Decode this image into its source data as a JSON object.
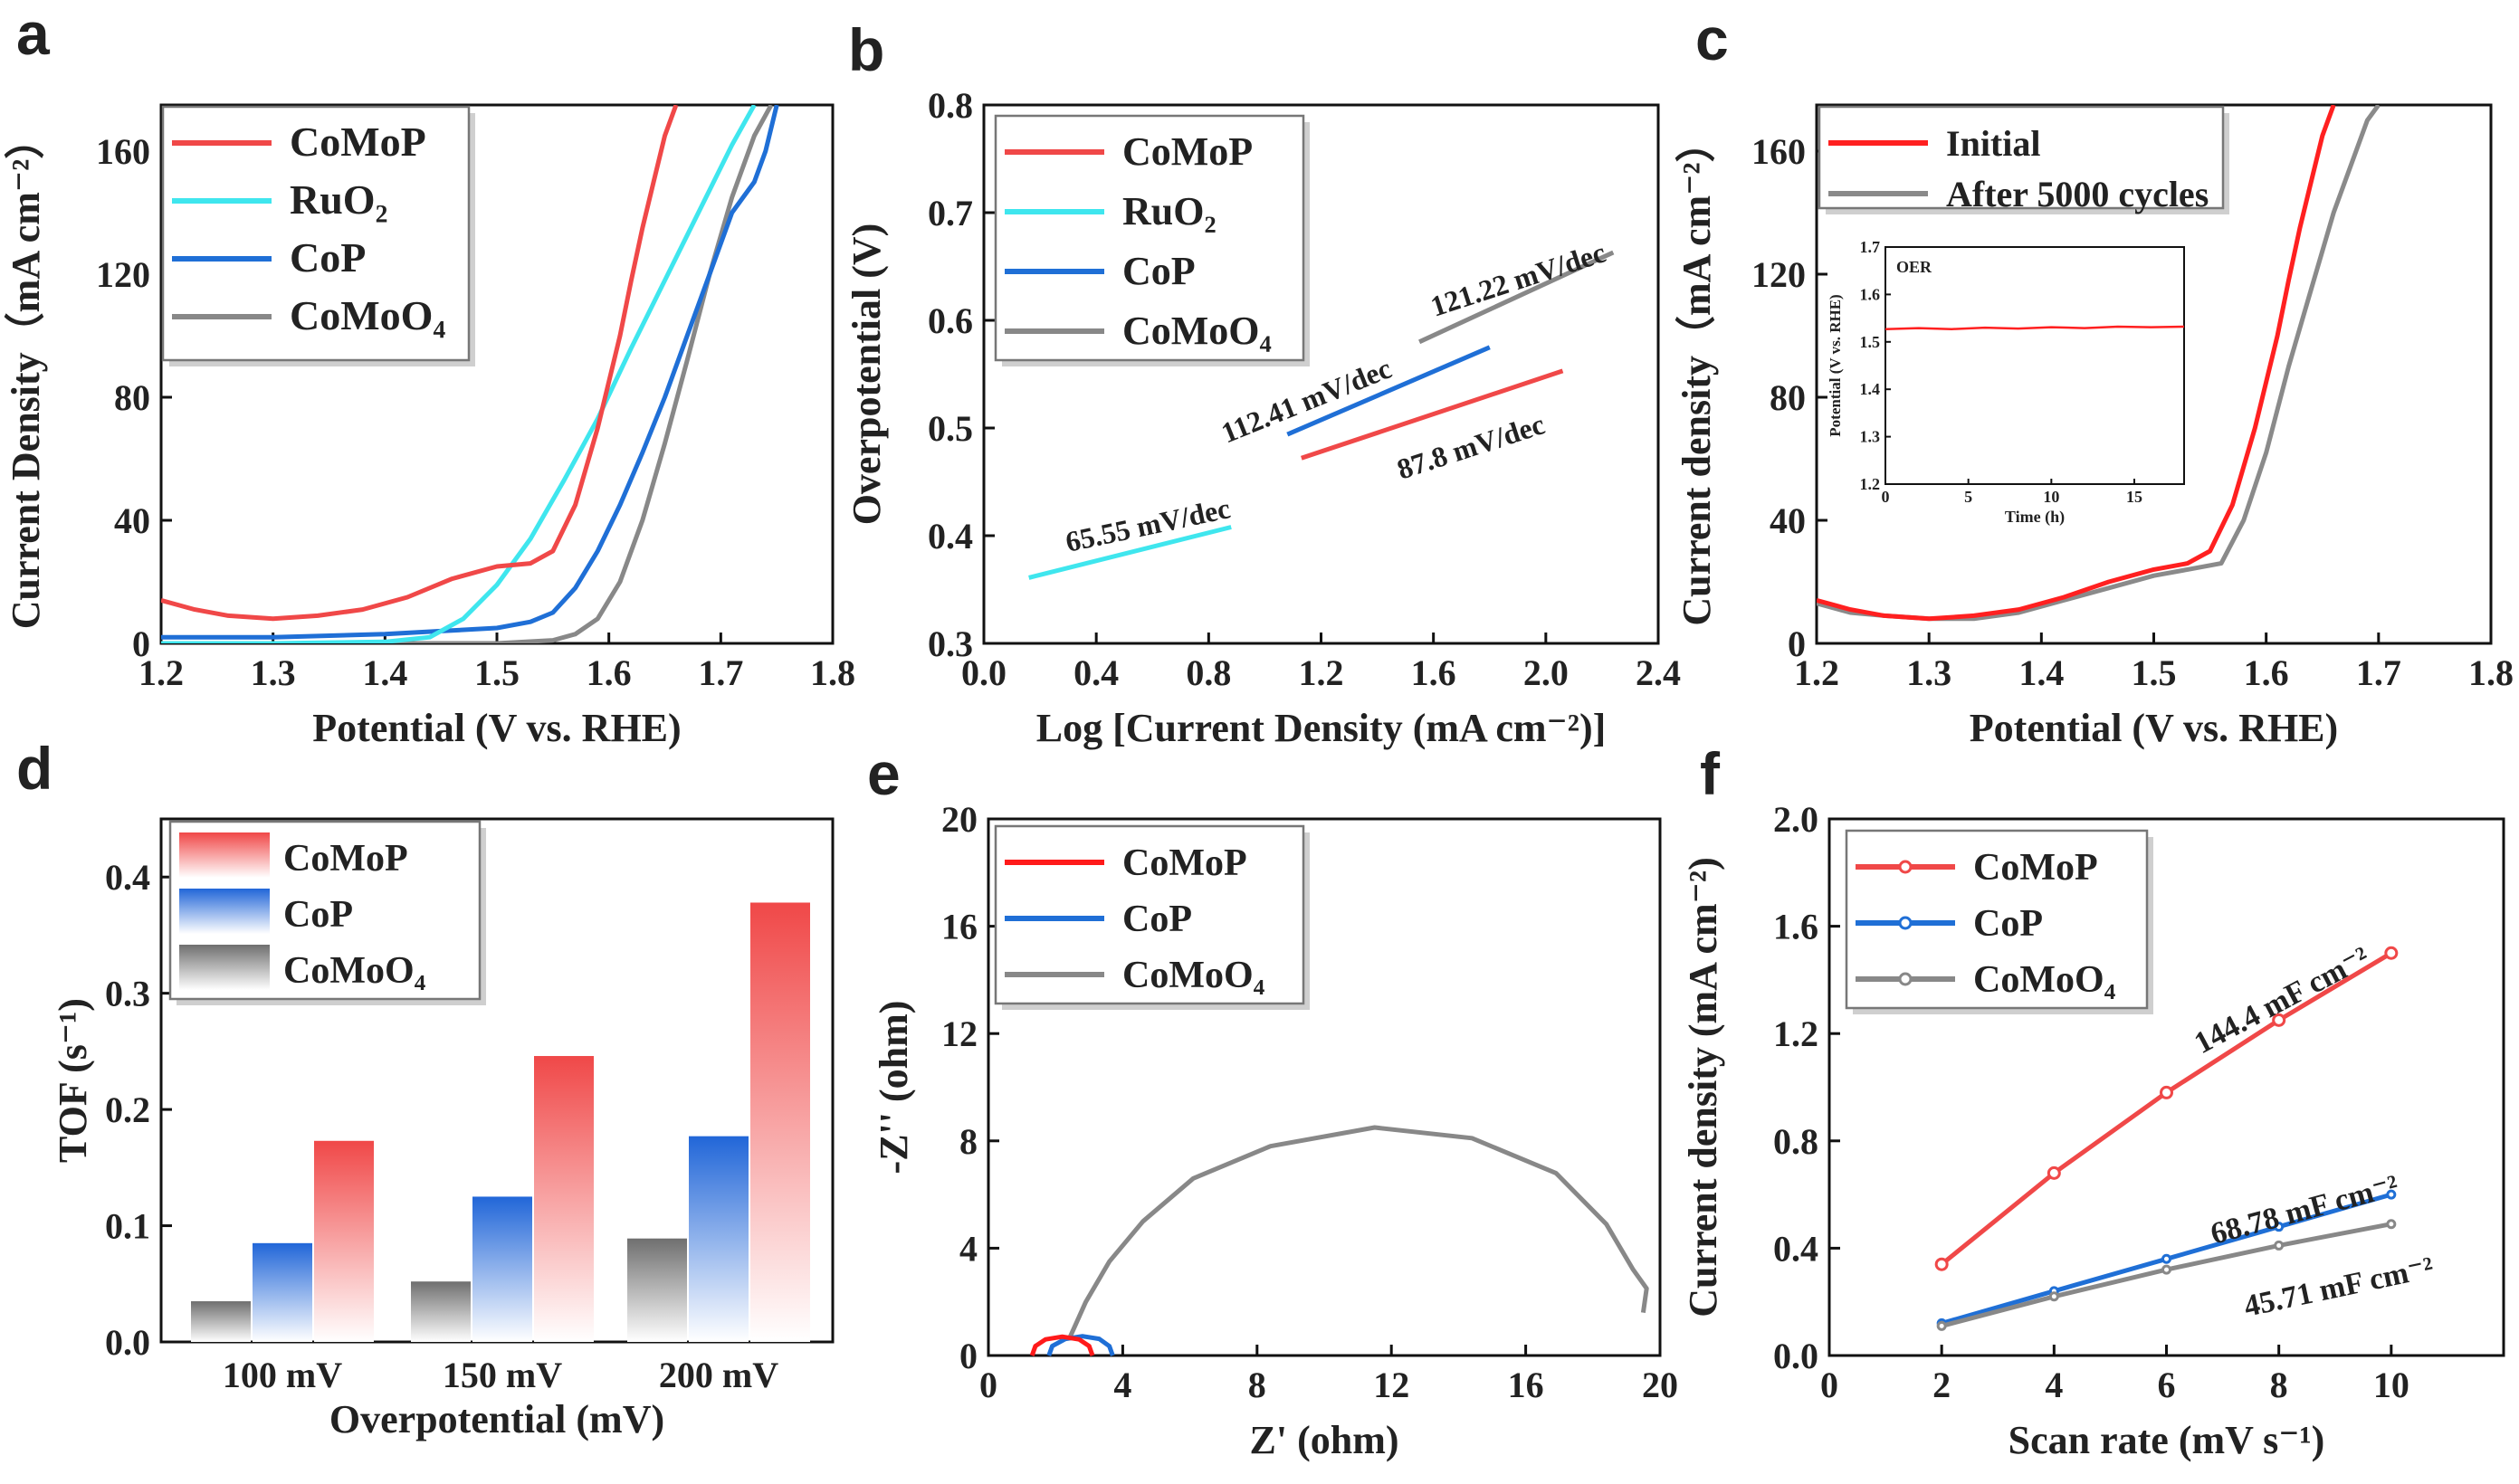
{
  "panels": {
    "a": {
      "letter": "a"
    },
    "b": {
      "letter": "b"
    },
    "c": {
      "letter": "c"
    },
    "d": {
      "letter": "d"
    },
    "e": {
      "letter": "e"
    },
    "f": {
      "letter": "f"
    }
  },
  "colors": {
    "CoMoP": "#f04848",
    "RuO2": "#3fe6ee",
    "CoP": "#1f6fd6",
    "CoMoO4": "#888888",
    "Initial": "#ff2020",
    "After": "#8a8a8a"
  },
  "chart_data": [
    {
      "id": "a",
      "type": "line",
      "title": "",
      "xlabel": "Potential (V vs. RHE)",
      "ylabel": "Current Density（mA cm⁻²）",
      "xlim": [
        1.2,
        1.8
      ],
      "ylim": [
        0,
        175
      ],
      "xticks": [
        "1.2",
        "1.3",
        "1.4",
        "1.5",
        "1.6",
        "1.7",
        "1.8"
      ],
      "yticks": [
        "0",
        "40",
        "80",
        "120",
        "160"
      ],
      "legend": [
        "CoMoP",
        "RuO₂",
        "CoP",
        "CoMoO₄"
      ],
      "series": [
        {
          "name": "CoMoP",
          "x": [
            1.2,
            1.23,
            1.26,
            1.3,
            1.34,
            1.38,
            1.42,
            1.46,
            1.5,
            1.53,
            1.55,
            1.57,
            1.59,
            1.61,
            1.62,
            1.63,
            1.64,
            1.65,
            1.66
          ],
          "y": [
            14,
            11,
            9,
            8,
            9,
            11,
            15,
            21,
            25,
            26,
            30,
            45,
            70,
            100,
            118,
            135,
            150,
            165,
            175
          ]
        },
        {
          "name": "RuO₂",
          "x": [
            1.2,
            1.3,
            1.4,
            1.44,
            1.47,
            1.5,
            1.53,
            1.56,
            1.59,
            1.62,
            1.65,
            1.68,
            1.71,
            1.73
          ],
          "y": [
            0,
            0,
            0.5,
            2,
            8,
            19,
            34,
            53,
            73,
            96,
            118,
            140,
            162,
            175
          ]
        },
        {
          "name": "CoP",
          "x": [
            1.2,
            1.3,
            1.4,
            1.45,
            1.5,
            1.53,
            1.55,
            1.57,
            1.59,
            1.61,
            1.63,
            1.65,
            1.67,
            1.69,
            1.71,
            1.73,
            1.74,
            1.75
          ],
          "y": [
            2,
            2,
            3,
            4,
            5,
            7,
            10,
            18,
            30,
            45,
            62,
            80,
            100,
            120,
            140,
            150,
            160,
            175
          ]
        },
        {
          "name": "CoMoO₄",
          "x": [
            1.2,
            1.4,
            1.5,
            1.55,
            1.57,
            1.59,
            1.61,
            1.63,
            1.65,
            1.67,
            1.69,
            1.71,
            1.73,
            1.745
          ],
          "y": [
            0,
            0,
            0,
            1,
            3,
            8,
            20,
            40,
            65,
            92,
            120,
            145,
            165,
            175
          ]
        }
      ]
    },
    {
      "id": "b",
      "type": "line",
      "xlabel": "Log [Current Density (mA cm⁻²)]",
      "ylabel": "Overpotential (V)",
      "xlim": [
        0.0,
        2.4
      ],
      "ylim": [
        0.3,
        0.8
      ],
      "xticks": [
        "0.0",
        "0.4",
        "0.8",
        "1.2",
        "1.6",
        "2.0",
        "2.4"
      ],
      "yticks": [
        "0.3",
        "0.4",
        "0.5",
        "0.6",
        "0.7",
        "0.8"
      ],
      "legend": [
        "CoMoP",
        "RuO₂",
        "CoP",
        "CoMoO₄"
      ],
      "series": [
        {
          "name": "CoMoP",
          "x": [
            1.13,
            2.06
          ],
          "y": [
            0.472,
            0.553
          ],
          "slope_label": "87.8 mV/dec"
        },
        {
          "name": "RuO₂",
          "x": [
            0.16,
            0.88
          ],
          "y": [
            0.361,
            0.408
          ],
          "slope_label": "65.55 mV/dec"
        },
        {
          "name": "CoP",
          "x": [
            1.08,
            1.8
          ],
          "y": [
            0.494,
            0.575
          ],
          "slope_label": "112.41 mV/dec"
        },
        {
          "name": "CoMoO₄",
          "x": [
            1.55,
            2.24
          ],
          "y": [
            0.58,
            0.663
          ],
          "slope_label": "121.22 mV/dec"
        }
      ]
    },
    {
      "id": "c",
      "type": "line",
      "xlabel": "Potential (V vs. RHE)",
      "ylabel": "Current density（mA cm⁻²）",
      "xlim": [
        1.2,
        1.8
      ],
      "ylim": [
        0,
        175
      ],
      "xticks": [
        "1.2",
        "1.3",
        "1.4",
        "1.5",
        "1.6",
        "1.7",
        "1.8"
      ],
      "yticks": [
        "0",
        "40",
        "80",
        "120",
        "160"
      ],
      "legend": [
        "Initial",
        "After 5000 cycles"
      ],
      "series": [
        {
          "name": "Initial",
          "x": [
            1.2,
            1.23,
            1.26,
            1.3,
            1.34,
            1.38,
            1.42,
            1.46,
            1.5,
            1.53,
            1.55,
            1.57,
            1.59,
            1.61,
            1.62,
            1.63,
            1.64,
            1.65,
            1.66
          ],
          "y": [
            14,
            11,
            9,
            8,
            9,
            11,
            15,
            20,
            24,
            26,
            30,
            45,
            70,
            100,
            118,
            135,
            150,
            165,
            175
          ]
        },
        {
          "name": "After 5000 cycles",
          "x": [
            1.2,
            1.23,
            1.26,
            1.3,
            1.34,
            1.38,
            1.42,
            1.46,
            1.5,
            1.53,
            1.56,
            1.58,
            1.6,
            1.62,
            1.64,
            1.66,
            1.68,
            1.69,
            1.7
          ],
          "y": [
            13,
            10,
            9,
            8,
            8,
            10,
            14,
            18,
            22,
            24,
            26,
            40,
            62,
            90,
            115,
            140,
            160,
            170,
            175
          ]
        }
      ],
      "inset": {
        "label": "OER",
        "xlabel": "Time (h)",
        "ylabel": "Potential (V vs. RHE)",
        "xlim": [
          0,
          18
        ],
        "ylim": [
          1.2,
          1.7
        ],
        "xticks": [
          "0",
          "5",
          "10",
          "15"
        ],
        "yticks": [
          "1.2",
          "1.3",
          "1.4",
          "1.5",
          "1.6",
          "1.7"
        ],
        "series": [
          {
            "name": "Potential",
            "x": [
              0,
              2,
              4,
              6,
              8,
              10,
              12,
              14,
              16,
              18
            ],
            "y": [
              1.527,
              1.529,
              1.527,
              1.53,
              1.528,
              1.531,
              1.529,
              1.532,
              1.531,
              1.532
            ]
          }
        ]
      }
    },
    {
      "id": "d",
      "type": "bar",
      "xlabel": "Overpotential (mV)",
      "ylabel": "TOF (s⁻¹)",
      "ylim": [
        0,
        0.45
      ],
      "categories": [
        "100 mV",
        "150 mV",
        "200 mV"
      ],
      "yticks": [
        "0.0",
        "0.1",
        "0.2",
        "0.3",
        "0.4"
      ],
      "legend": [
        "CoMoP",
        "CoP",
        "CoMoO₄"
      ],
      "series": [
        {
          "name": "CoMoO₄",
          "values": [
            0.035,
            0.052,
            0.089
          ]
        },
        {
          "name": "CoP",
          "values": [
            0.085,
            0.125,
            0.177
          ]
        },
        {
          "name": "CoMoP",
          "values": [
            0.173,
            0.246,
            0.378
          ]
        }
      ]
    },
    {
      "id": "e",
      "type": "line",
      "xlabel": "Z' (ohm)",
      "ylabel": "-Z'' (ohm)",
      "xlim": [
        0,
        20
      ],
      "ylim": [
        0,
        20
      ],
      "xticks": [
        "0",
        "4",
        "8",
        "12",
        "16",
        "20"
      ],
      "yticks": [
        "0",
        "4",
        "8",
        "12",
        "16",
        "20"
      ],
      "legend": [
        "CoMoP",
        "CoP",
        "CoMoO₄"
      ],
      "series": [
        {
          "name": "CoMoP",
          "x": [
            1.3,
            1.4,
            1.7,
            2.2,
            2.7,
            3.0,
            3.1
          ],
          "y": [
            0,
            0.35,
            0.6,
            0.7,
            0.6,
            0.35,
            0
          ]
        },
        {
          "name": "CoP",
          "x": [
            1.8,
            1.9,
            2.3,
            2.8,
            3.3,
            3.6,
            3.7
          ],
          "y": [
            0,
            0.35,
            0.62,
            0.72,
            0.62,
            0.35,
            0
          ]
        },
        {
          "name": "CoMoO₄",
          "x": [
            2.4,
            2.9,
            3.6,
            4.6,
            6.1,
            8.4,
            11.5,
            14.4,
            16.9,
            18.4,
            19.2,
            19.6,
            19.5
          ],
          "y": [
            0.6,
            2.0,
            3.5,
            5.0,
            6.6,
            7.8,
            8.5,
            8.1,
            6.8,
            4.9,
            3.2,
            2.5,
            1.6
          ]
        }
      ]
    },
    {
      "id": "f",
      "type": "line",
      "xlabel": "Scan rate (mV s⁻¹)",
      "ylabel": "Current density (mA cm⁻²)",
      "xlim": [
        0,
        12
      ],
      "ylim": [
        0,
        2.0
      ],
      "xticks": [
        "0",
        "2",
        "4",
        "6",
        "8",
        "10"
      ],
      "yticks": [
        "0.0",
        "0.4",
        "0.8",
        "1.2",
        "1.6",
        "2.0"
      ],
      "legend": [
        "CoMoP",
        "CoP",
        "CoMoO₄"
      ],
      "series": [
        {
          "name": "CoMoP",
          "x": [
            2,
            4,
            6,
            8,
            10
          ],
          "y": [
            0.34,
            0.68,
            0.98,
            1.25,
            1.5
          ],
          "slope_label": "144.4 mF cm⁻²"
        },
        {
          "name": "CoP",
          "x": [
            2,
            4,
            6,
            8,
            10
          ],
          "y": [
            0.12,
            0.24,
            0.36,
            0.48,
            0.6
          ],
          "slope_label": "68.78 mF cm⁻²"
        },
        {
          "name": "CoMoO₄",
          "x": [
            2,
            4,
            6,
            8,
            10
          ],
          "y": [
            0.11,
            0.22,
            0.32,
            0.41,
            0.49
          ],
          "slope_label": "45.71 mF cm⁻²"
        }
      ]
    }
  ]
}
